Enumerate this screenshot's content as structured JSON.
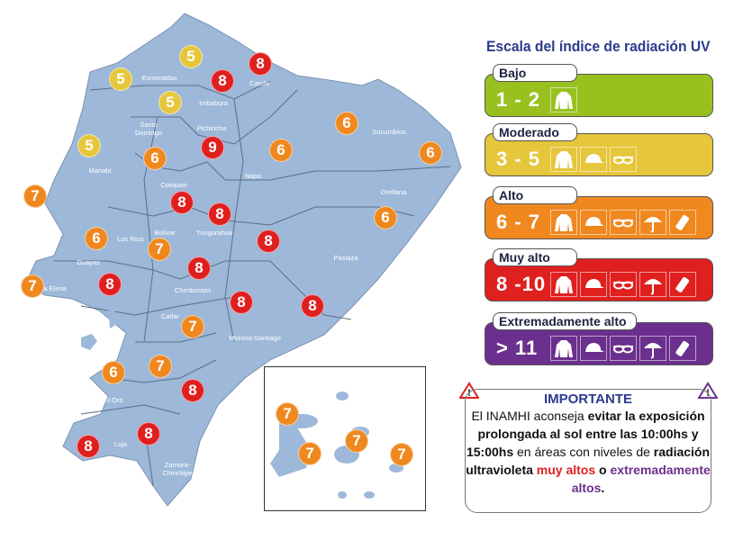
{
  "title": "Escala del índice de radiación UV",
  "colors": {
    "land": "#9db8d9",
    "border": "#5a6f8a",
    "bajo": "#98c11f",
    "moderado": "#e6c63b",
    "alto": "#ef881f",
    "muy_alto": "#e01f1f",
    "extremo": "#6b2f8e",
    "title": "#2d3a8c"
  },
  "levels": [
    {
      "name": "Bajo",
      "range": "1 - 2",
      "color": "#98c11f",
      "icons": [
        "shirt-icon"
      ]
    },
    {
      "name": "Moderado",
      "range": "3 - 5",
      "color": "#e6c63b",
      "icons": [
        "shirt-icon",
        "cap-icon",
        "sunglasses-icon"
      ]
    },
    {
      "name": "Alto",
      "range": "6 - 7",
      "color": "#ef881f",
      "icons": [
        "shirt-icon",
        "cap-icon",
        "sunglasses-icon",
        "umbrella-icon",
        "sunscreen-icon"
      ]
    },
    {
      "name": "Muy alto",
      "range": "8 -10",
      "color": "#e01f1f",
      "icons": [
        "shirt-icon",
        "cap-icon",
        "sunglasses-icon",
        "umbrella-icon",
        "sunscreen-icon"
      ]
    },
    {
      "name": "Extremadamente alto",
      "range": "> 11",
      "color": "#6b2f8e",
      "icons": [
        "shirt-icon",
        "cap-icon",
        "sunglasses-icon",
        "umbrella-icon",
        "sunscreen-icon"
      ]
    }
  ],
  "important": {
    "title": "IMPORTANTE",
    "t1": "El INAMHI aconseja ",
    "b1": "evitar la exposición prolongada al sol entre las 10:00hs y 15:00hs",
    "t2": " en áreas con niveles de ",
    "b2": "radiación ultravioleta ",
    "red": "muy altos",
    "t3": " o ",
    "purple": "extremadamente altos",
    "t4": "."
  },
  "provinces": [
    "Esmeraldas",
    "Carchi",
    "Imbabura",
    "Santo Domingo",
    "Pichincha",
    "Manabí",
    "Cotopaxi",
    "Napo",
    "Sucumbíos",
    "Orellana",
    "Los Ríos",
    "Bolívar",
    "Tungurahua",
    "Pastaza",
    "Guayas",
    "nta Elena",
    "Chimborazo",
    "Cañar",
    "Morona-Santiago",
    "El Oro",
    "Loja",
    "Zamora-Chinchipe"
  ],
  "uv_values": [
    5,
    5,
    8,
    8,
    5,
    5,
    9,
    6,
    6,
    6,
    6,
    7,
    8,
    8,
    6,
    7,
    8,
    6,
    8,
    7,
    8,
    8,
    8,
    7,
    7,
    6,
    8,
    8,
    8
  ],
  "galapagos_values": [
    7,
    7,
    7,
    7
  ]
}
